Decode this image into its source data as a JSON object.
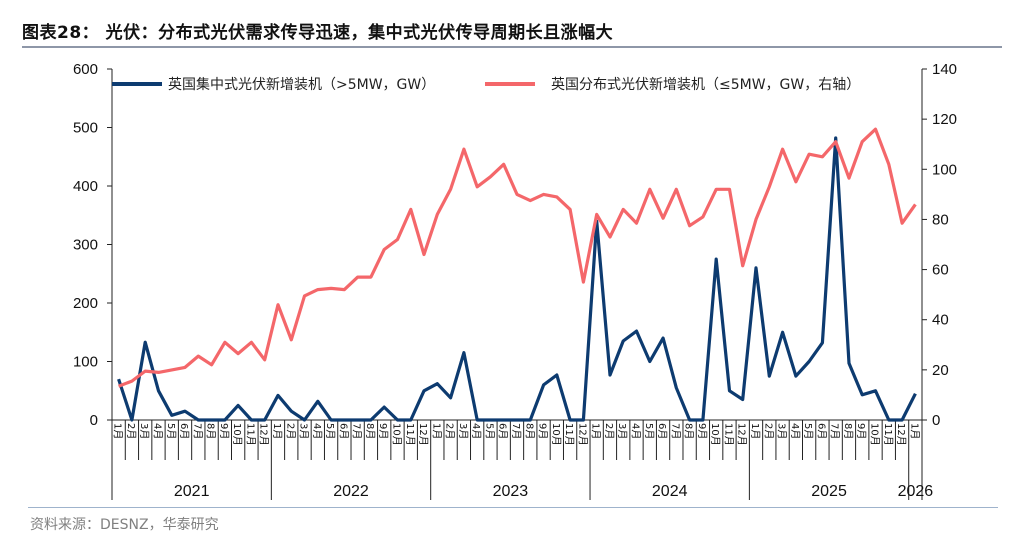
{
  "title": "图表28： 光伏：分布式光伏需求传导迅速，集中式光伏传导周期长且涨幅大",
  "source": "资料来源：DESNZ，华泰研究",
  "chart_data": {
    "type": "line",
    "title": "",
    "legend_position": "top",
    "grid": false,
    "years": [
      "2021",
      "2022",
      "2023",
      "2024",
      "2025",
      "2026"
    ],
    "month_labels": [
      "1月",
      "2月",
      "3月",
      "4月",
      "5月",
      "6月",
      "7月",
      "8月",
      "9月",
      "10月",
      "11月",
      "12月"
    ],
    "x_start": "2021-01",
    "x_end": "2026-01",
    "y_left": {
      "lim": [
        0,
        600
      ],
      "ticks": [
        0,
        100,
        200,
        300,
        400,
        500,
        600
      ]
    },
    "y_right": {
      "lim": [
        0,
        140
      ],
      "ticks": [
        0,
        20,
        40,
        60,
        80,
        100,
        120,
        140
      ]
    },
    "series": [
      {
        "name": "英国集中式光伏新增装机（>5MW，GW）",
        "axis": "left",
        "color": "#0d3b70",
        "values": [
          70,
          0,
          133,
          50,
          8,
          15,
          0,
          0,
          0,
          25,
          0,
          0,
          42,
          15,
          0,
          32,
          0,
          0,
          0,
          0,
          22,
          0,
          0,
          50,
          62,
          38,
          115,
          0,
          0,
          0,
          0,
          0,
          60,
          77,
          0,
          0,
          340,
          77,
          135,
          152,
          100,
          140,
          55,
          0,
          0,
          275,
          50,
          35,
          260,
          75,
          150,
          75,
          100,
          132,
          482,
          97,
          43,
          50,
          0,
          0,
          45
        ]
      },
      {
        "name": "英国分布式光伏新增装机（≤5MW，GW，右轴）",
        "axis": "right",
        "color": "#f4676a",
        "values": [
          13.5,
          15.5,
          19.5,
          19,
          20,
          21,
          25.5,
          22,
          31,
          26.5,
          31,
          24,
          46,
          32,
          49.5,
          52,
          52.5,
          52,
          57,
          57,
          68,
          72,
          84,
          66,
          82,
          92,
          108,
          93,
          97,
          102,
          90,
          87.5,
          90,
          89,
          84,
          55,
          82,
          73,
          84,
          78.5,
          92,
          80.5,
          92,
          77.5,
          81,
          92,
          92,
          61.5,
          80,
          93,
          108,
          95,
          106,
          105,
          111,
          96.5,
          111,
          116,
          102,
          78.5,
          86
        ]
      }
    ]
  }
}
